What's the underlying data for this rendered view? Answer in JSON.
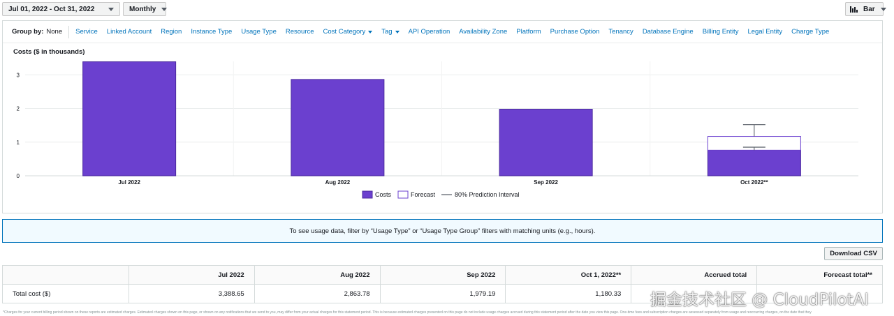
{
  "controls": {
    "date_range": "Jul 01, 2022 - Oct 31, 2022",
    "granularity": "Monthly",
    "chart_type": "Bar"
  },
  "group_by": {
    "label": "Group by:",
    "value": "None",
    "options": [
      {
        "label": "Service",
        "dropdown": false
      },
      {
        "label": "Linked Account",
        "dropdown": false
      },
      {
        "label": "Region",
        "dropdown": false
      },
      {
        "label": "Instance Type",
        "dropdown": false
      },
      {
        "label": "Usage Type",
        "dropdown": false
      },
      {
        "label": "Resource",
        "dropdown": false
      },
      {
        "label": "Cost Category",
        "dropdown": true
      },
      {
        "label": "Tag",
        "dropdown": true
      },
      {
        "label": "API Operation",
        "dropdown": false
      },
      {
        "label": "Availability Zone",
        "dropdown": false
      },
      {
        "label": "Platform",
        "dropdown": false
      },
      {
        "label": "Purchase Option",
        "dropdown": false
      },
      {
        "label": "Tenancy",
        "dropdown": false
      },
      {
        "label": "Database Engine",
        "dropdown": false
      },
      {
        "label": "Billing Entity",
        "dropdown": false
      },
      {
        "label": "Legal Entity",
        "dropdown": false
      },
      {
        "label": "Charge Type",
        "dropdown": false
      }
    ]
  },
  "chart_data": {
    "type": "bar",
    "ylabel": "Costs ($ in thousands)",
    "ylim": [
      0,
      3.4
    ],
    "yticks": [
      0,
      1,
      2,
      3
    ],
    "categories": [
      "Jul 2022",
      "Aug 2022",
      "Sep 2022",
      "Oct 2022**"
    ],
    "series": [
      {
        "name": "Costs",
        "color": "#6b40cf",
        "values": [
          3.38865,
          2.86378,
          1.97919,
          0.76
        ]
      },
      {
        "name": "Forecast",
        "color": "#ffffff",
        "values": [
          null,
          null,
          null,
          0.41
        ]
      }
    ],
    "prediction_interval": {
      "name": "80% Prediction Interval",
      "category": "Oct 2022**",
      "low": 0.85,
      "high": 1.52
    },
    "grid": true,
    "legend": [
      "Costs",
      "Forecast",
      "80% Prediction Interval"
    ],
    "legend_position": "bottom"
  },
  "banner": {
    "text": "To see usage data, filter by “Usage Type” or “Usage Type Group” filters with matching units (e.g., hours)."
  },
  "download_label": "Download CSV",
  "table": {
    "headers": [
      "",
      "Jul 2022",
      "Aug 2022",
      "Sep 2022",
      "Oct 1, 2022**",
      "Accrued total",
      "Forecast total**"
    ],
    "rows": [
      {
        "label": "Total cost ($)",
        "cells": [
          "3,388.65",
          "2,863.78",
          "1,979.19",
          "1,180.33",
          "",
          ""
        ]
      }
    ]
  },
  "footnote": "*Charges for your current billing period shown on these reports are estimated charges. Estimated charges shown on this page, or shown on any notifications that we send to you, may differ from your actual charges for this statement period. This is because estimated charges presented on this page do not include usage charges accrued during this statement period after the date you view this page. One-time fees and subscription charges are assessed separately from usage and reoccurring charges, on the date that they",
  "watermark": "掘金技术社区 @ CloudPilotAI"
}
